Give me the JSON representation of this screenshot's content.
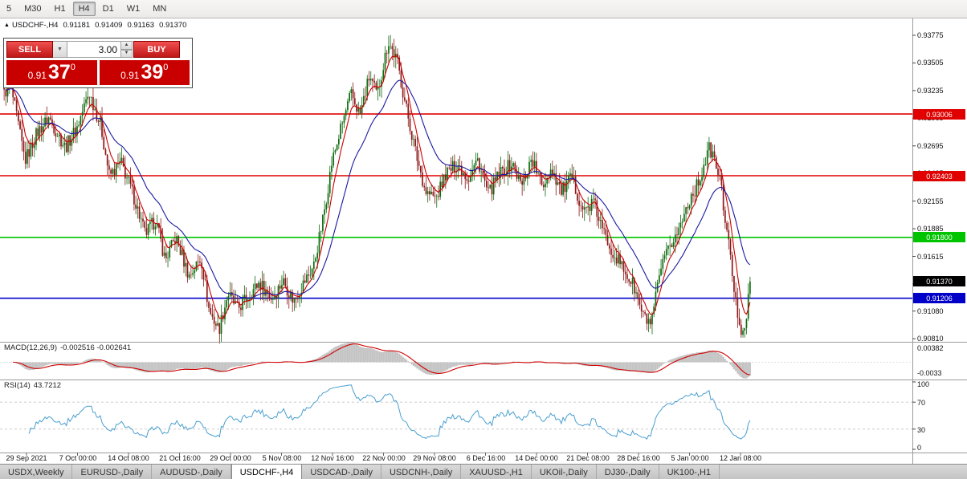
{
  "toolbar": {
    "timeframes": [
      {
        "label": "5",
        "active": false
      },
      {
        "label": "M30",
        "active": false
      },
      {
        "label": "H1",
        "active": false
      },
      {
        "label": "H4",
        "active": true
      },
      {
        "label": "D1",
        "active": false
      },
      {
        "label": "W1",
        "active": false
      },
      {
        "label": "MN",
        "active": false
      }
    ]
  },
  "symbol_header": {
    "symbol": "USDCHF-,H4",
    "open": "0.91181",
    "high": "0.91409",
    "low": "0.91163",
    "close": "0.91370"
  },
  "trade_panel": {
    "sell_label": "SELL",
    "buy_label": "BUY",
    "volume": "3.00",
    "bid": {
      "prefix": "0.91",
      "big": "37",
      "sup": "0"
    },
    "ask": {
      "prefix": "0.91",
      "big": "39",
      "sup": "0"
    }
  },
  "price_axis": {
    "ticks": [
      "0.93775",
      "0.93505",
      "0.93235",
      "0.92965",
      "0.92695",
      "0.92425",
      "0.92155",
      "0.91885",
      "0.91615",
      "0.91345",
      "0.91080",
      "0.90810"
    ]
  },
  "macd_panel": {
    "label": "MACD(12,26,9)",
    "values": "-0.002516 -0.002641",
    "axis": [
      "0.00382",
      "-0.0033"
    ]
  },
  "rsi_panel": {
    "label": "RSI(14)",
    "value": "43.7212",
    "axis": [
      "100",
      "70",
      "30",
      "0"
    ]
  },
  "time_axis": [
    "29 Sep 2021",
    "7 Oct 00:00",
    "14 Oct 08:00",
    "21 Oct 16:00",
    "29 Oct 00:00",
    "5 Nov 08:00",
    "12 Nov 16:00",
    "22 Nov 00:00",
    "29 Nov 08:00",
    "6 Dec 16:00",
    "14 Dec 00:00",
    "21 Dec 08:00",
    "28 Dec 16:00",
    "5 Jan 00:00",
    "12 Jan 08:00"
  ],
  "tabs": [
    {
      "label": "USDX,Weekly",
      "active": false
    },
    {
      "label": "EURUSD-,Daily",
      "active": false
    },
    {
      "label": "AUDUSD-,Daily",
      "active": false
    },
    {
      "label": "USDCHF-,H4",
      "active": true
    },
    {
      "label": "USDCAD-,Daily",
      "active": false
    },
    {
      "label": "USDCNH-,Daily",
      "active": false
    },
    {
      "label": "XAUUSD-,H1",
      "active": false
    },
    {
      "label": "UKOil-,Daily",
      "active": false
    },
    {
      "label": "DJ30-,Daily",
      "active": false
    },
    {
      "label": "UK100-,H1",
      "active": false
    }
  ],
  "chart_data": {
    "type": "candlestick",
    "symbol": "USDCHF-,H4",
    "ohlc_display": {
      "open": 0.91181,
      "high": 0.91409,
      "low": 0.91163,
      "close": 0.9137
    },
    "last_close": 0.9137,
    "candle_count": 420,
    "price_range": [
      0.9078,
      0.9394
    ],
    "bull_color": "#0e6b0e",
    "bear_color": "#8c1818",
    "price_path": [
      [
        0.0,
        0.932
      ],
      [
        0.008,
        0.9331
      ],
      [
        0.028,
        0.9255
      ],
      [
        0.044,
        0.9282
      ],
      [
        0.06,
        0.9297
      ],
      [
        0.082,
        0.9268
      ],
      [
        0.098,
        0.9288
      ],
      [
        0.114,
        0.9322
      ],
      [
        0.13,
        0.9288
      ],
      [
        0.141,
        0.924
      ],
      [
        0.157,
        0.9253
      ],
      [
        0.173,
        0.9222
      ],
      [
        0.189,
        0.9183
      ],
      [
        0.203,
        0.9197
      ],
      [
        0.216,
        0.9158
      ],
      [
        0.23,
        0.918
      ],
      [
        0.248,
        0.9142
      ],
      [
        0.264,
        0.916
      ],
      [
        0.275,
        0.9108
      ],
      [
        0.288,
        0.909
      ],
      [
        0.3,
        0.9125
      ],
      [
        0.313,
        0.911
      ],
      [
        0.329,
        0.9124
      ],
      [
        0.342,
        0.9136
      ],
      [
        0.359,
        0.912
      ],
      [
        0.374,
        0.9138
      ],
      [
        0.388,
        0.9118
      ],
      [
        0.402,
        0.9136
      ],
      [
        0.415,
        0.9152
      ],
      [
        0.428,
        0.92
      ],
      [
        0.439,
        0.9252
      ],
      [
        0.452,
        0.9288
      ],
      [
        0.465,
        0.932
      ],
      [
        0.477,
        0.93
      ],
      [
        0.49,
        0.9338
      ],
      [
        0.5,
        0.9318
      ],
      [
        0.515,
        0.9372
      ],
      [
        0.527,
        0.9352
      ],
      [
        0.538,
        0.931
      ],
      [
        0.552,
        0.9262
      ],
      [
        0.565,
        0.9225
      ],
      [
        0.579,
        0.9218
      ],
      [
        0.592,
        0.9242
      ],
      [
        0.608,
        0.9252
      ],
      [
        0.622,
        0.9238
      ],
      [
        0.635,
        0.9256
      ],
      [
        0.649,
        0.9222
      ],
      [
        0.664,
        0.9242
      ],
      [
        0.681,
        0.9252
      ],
      [
        0.694,
        0.923
      ],
      [
        0.707,
        0.9258
      ],
      [
        0.721,
        0.923
      ],
      [
        0.734,
        0.9248
      ],
      [
        0.747,
        0.9225
      ],
      [
        0.761,
        0.9238
      ],
      [
        0.777,
        0.9205
      ],
      [
        0.79,
        0.9215
      ],
      [
        0.803,
        0.9185
      ],
      [
        0.817,
        0.9165
      ],
      [
        0.831,
        0.9148
      ],
      [
        0.844,
        0.9132
      ],
      [
        0.857,
        0.9102
      ],
      [
        0.868,
        0.9095
      ],
      [
        0.879,
        0.9145
      ],
      [
        0.893,
        0.9172
      ],
      [
        0.906,
        0.919
      ],
      [
        0.917,
        0.9215
      ],
      [
        0.93,
        0.9232
      ],
      [
        0.946,
        0.9268
      ],
      [
        0.959,
        0.924
      ],
      [
        0.971,
        0.9175
      ],
      [
        0.981,
        0.9115
      ],
      [
        0.988,
        0.909
      ],
      [
        0.995,
        0.9098
      ],
      [
        1.0,
        0.9137
      ]
    ],
    "levels": [
      {
        "price": 0.93006,
        "color": "#e00000",
        "label": "0.93006"
      },
      {
        "price": 0.92403,
        "color": "#e00000",
        "label": "0.92403"
      },
      {
        "price": 0.918,
        "color": "#00c400",
        "label": "0.91800"
      },
      {
        "price": 0.9137,
        "color": "#000000",
        "label": "0.91370",
        "axis_only": true
      },
      {
        "price": 0.91206,
        "color": "#0000c8",
        "label": "0.91206"
      }
    ],
    "moving_averages": [
      {
        "period": 7,
        "color": "#cc0000"
      },
      {
        "period": 25,
        "color": "#1a1aa0"
      }
    ],
    "macd": {
      "fast": 12,
      "slow": 26,
      "signal": 9,
      "histogram_color": "#c4c4c4",
      "signal_color": "#d00000",
      "range": [
        -0.0033,
        0.00382
      ]
    },
    "rsi": {
      "period": 14,
      "color": "#4a9fd0",
      "levels": [
        70,
        30
      ],
      "range": [
        0,
        100
      ]
    }
  }
}
